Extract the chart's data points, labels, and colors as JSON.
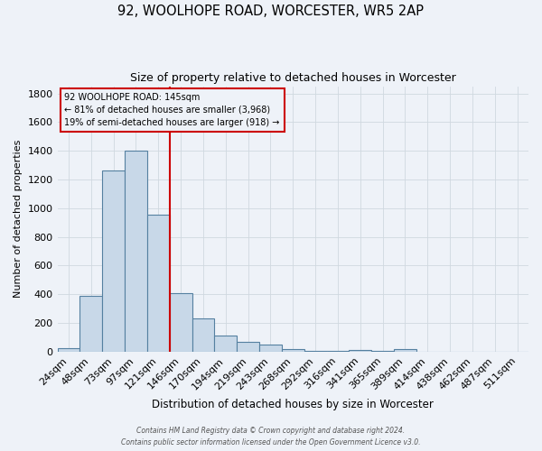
{
  "title1": "92, WOOLHOPE ROAD, WORCESTER, WR5 2AP",
  "title2": "Size of property relative to detached houses in Worcester",
  "xlabel": "Distribution of detached houses by size in Worcester",
  "ylabel": "Number of detached properties",
  "categories": [
    "24sqm",
    "48sqm",
    "73sqm",
    "97sqm",
    "121sqm",
    "146sqm",
    "170sqm",
    "194sqm",
    "219sqm",
    "243sqm",
    "268sqm",
    "292sqm",
    "316sqm",
    "341sqm",
    "365sqm",
    "389sqm",
    "414sqm",
    "438sqm",
    "462sqm",
    "487sqm",
    "511sqm"
  ],
  "values": [
    25,
    390,
    1260,
    1400,
    955,
    410,
    230,
    115,
    65,
    50,
    17,
    5,
    5,
    12,
    5,
    20,
    0,
    0,
    0,
    0,
    0
  ],
  "bar_color": "#c8d8e8",
  "bar_edge_color": "#5580a0",
  "background_color": "#eef2f8",
  "grid_color": "#d0d8e0",
  "vline_color": "#cc0000",
  "vline_pos": 4.5,
  "annotation_text_line1": "92 WOOLHOPE ROAD: 145sqm",
  "annotation_text_line2": "← 81% of detached houses are smaller (3,968)",
  "annotation_text_line3": "19% of semi-detached houses are larger (918) →",
  "annotation_box_color": "#cc0000",
  "footer1": "Contains HM Land Registry data © Crown copyright and database right 2024.",
  "footer2": "Contains public sector information licensed under the Open Government Licence v3.0.",
  "ylim": [
    0,
    1850
  ],
  "yticks": [
    0,
    200,
    400,
    600,
    800,
    1000,
    1200,
    1400,
    1600,
    1800
  ]
}
